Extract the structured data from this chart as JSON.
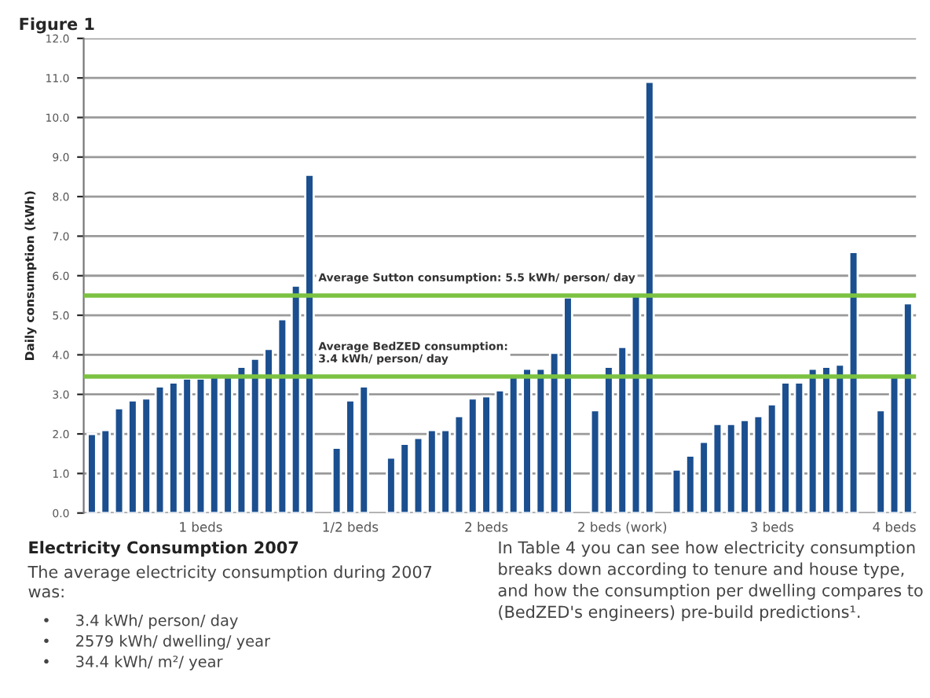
{
  "chart_data": {
    "type": "bar",
    "title": "Figure 1",
    "ylabel": "Daily consumption (kWh)",
    "categories": [
      null,
      null,
      null,
      null,
      null,
      null,
      null,
      null,
      "1 beds",
      null,
      null,
      null,
      null,
      null,
      null,
      null,
      null,
      null,
      null,
      "1/2 beds",
      null,
      null,
      null,
      null,
      null,
      null,
      null,
      null,
      null,
      "2 beds",
      null,
      null,
      null,
      null,
      null,
      null,
      null,
      null,
      null,
      "2 beds (work)",
      null,
      null,
      null,
      null,
      null,
      null,
      null,
      null,
      null,
      null,
      "3 beds",
      null,
      null,
      null,
      null,
      null,
      null,
      null,
      null,
      "4 beds",
      null
    ],
    "values": [
      2.0,
      2.1,
      2.65,
      2.85,
      2.9,
      3.2,
      3.3,
      3.4,
      3.4,
      3.45,
      3.45,
      3.7,
      3.9,
      4.15,
      4.9,
      5.75,
      8.55,
      null,
      1.65,
      2.85,
      3.2,
      null,
      1.4,
      1.75,
      1.9,
      2.1,
      2.1,
      2.45,
      2.9,
      2.95,
      3.1,
      3.45,
      3.65,
      3.65,
      4.05,
      5.45,
      null,
      2.6,
      3.7,
      4.2,
      5.5,
      10.9,
      null,
      1.1,
      1.45,
      1.8,
      2.25,
      2.25,
      2.35,
      2.45,
      2.75,
      3.3,
      3.3,
      3.65,
      3.7,
      3.75,
      6.6,
      null,
      2.6,
      3.5,
      5.3
    ],
    "color": "#1b4f8f",
    "ylim": [
      0,
      12
    ],
    "yticks": [
      {
        "value": 0,
        "label": "0.0"
      },
      {
        "value": 1,
        "label": "1.0"
      },
      {
        "value": 2,
        "label": "2.0"
      },
      {
        "value": 3,
        "label": "3.0"
      },
      {
        "value": 4,
        "label": "4.0"
      },
      {
        "value": 5,
        "label": "5.0"
      },
      {
        "value": 6,
        "label": "6.0"
      },
      {
        "value": 7,
        "label": "7.0"
      },
      {
        "value": 8,
        "label": "8.0"
      },
      {
        "value": 9,
        "label": "9.0"
      },
      {
        "value": 10,
        "label": "10.0"
      },
      {
        "value": 11,
        "label": "11.0"
      },
      {
        "value": 12,
        "label": "12.0"
      }
    ],
    "grid": "y",
    "ref_lines": [
      {
        "axis": "y",
        "value": 5.5,
        "label": "Average Sutton consumption: 5.5 kWh/ person/ day",
        "color": "#7cc242"
      },
      {
        "axis": "y",
        "value": 3.45,
        "label": "Average BedZED consumption:\n3.4 kWh/ person/ day",
        "color": "#7cc242"
      }
    ],
    "annotations": [
      "Electricity Consumption 2007",
      "The average electricity consumption during 2007\nwas:",
      "•     3.4 kWh/ person/ day\n•     2579 kWh/ dwelling/ year\n•     34.4 kWh/ m²/ year",
      "In Table 4 you can see how electricity consumption\nbreaks down according to tenure and house type,\nand how the consumption per dwelling compares to\n(BedZED's engineers) pre-build predictions¹."
    ]
  }
}
